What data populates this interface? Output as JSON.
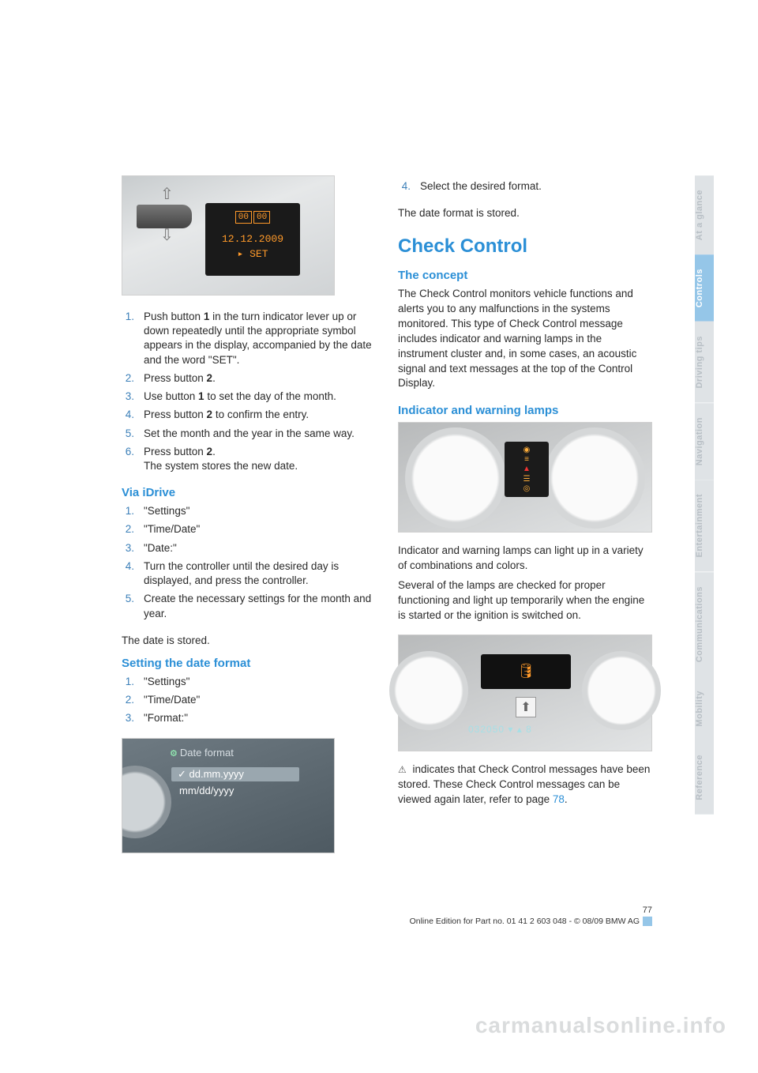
{
  "tabs": [
    {
      "label": "At a glance",
      "active": false
    },
    {
      "label": "Controls",
      "active": true
    },
    {
      "label": "Driving tips",
      "active": false
    },
    {
      "label": "Navigation",
      "active": false
    },
    {
      "label": "Entertainment",
      "active": false
    },
    {
      "label": "Communications",
      "active": false
    },
    {
      "label": "Mobility",
      "active": false
    },
    {
      "label": "Reference",
      "active": false
    }
  ],
  "tab_colors": {
    "active_bg": "#95c6e8",
    "active_fg": "#ffffff",
    "inactive_bg": "#dfe3e6",
    "inactive_fg": "#b8bfc5"
  },
  "fig1": {
    "display_top": "00 00",
    "date": "12.12.2009",
    "set": "▸  SET"
  },
  "steps_a": [
    {
      "n": "1.",
      "color": "#3b7fb8",
      "t": "Push button 1 in the turn indicator lever up or down repeatedly until the appropriate symbol appears in the display, accompanied by the date and the word \"SET\"."
    },
    {
      "n": "2.",
      "color": "#3b7fb8",
      "t": "Press button 2."
    },
    {
      "n": "3.",
      "color": "#3b7fb8",
      "t": "Use button 1 to set the day of the month."
    },
    {
      "n": "4.",
      "color": "#3b7fb8",
      "t": "Press button 2 to confirm the entry."
    },
    {
      "n": "5.",
      "color": "#3b7fb8",
      "t": "Set the month and the year in the same way."
    },
    {
      "n": "6.",
      "color": "#3b7fb8",
      "t": "Press button 2.\nThe system stores the new date."
    }
  ],
  "via_idrive_h": "Via iDrive",
  "steps_b": [
    {
      "n": "1.",
      "t": "\"Settings\""
    },
    {
      "n": "2.",
      "t": "\"Time/Date\""
    },
    {
      "n": "3.",
      "t": "\"Date:\""
    },
    {
      "n": "4.",
      "t": "Turn the controller until the desired day is displayed, and press the controller."
    },
    {
      "n": "5.",
      "t": "Create the necessary settings for the month and year."
    }
  ],
  "date_stored": "The date is stored.",
  "set_fmt_h": "Setting the date format",
  "steps_c": [
    {
      "n": "1.",
      "t": "\"Settings\""
    },
    {
      "n": "2.",
      "t": "\"Time/Date\""
    },
    {
      "n": "3.",
      "t": "\"Format:\""
    }
  ],
  "figfmt": {
    "title": "Date format",
    "row1": "dd.mm.yyyy",
    "row2": "mm/dd/yyyy"
  },
  "steps_d": [
    {
      "n": "4.",
      "t": "Select the desired format."
    }
  ],
  "fmt_stored": "The date format is stored.",
  "check_h": "Check Control",
  "concept_h": "The concept",
  "concept_p": "The Check Control monitors vehicle functions and alerts you to any malfunctions in the systems monitored. This type of Check Control message includes indicator and warning lamps in the instrument cluster and, in some cases, an acoustic signal and text messages at the top of the Control Display.",
  "iw_h": "Indicator and warning lamps",
  "iw_p1": "Indicator and warning lamps can light up in a variety of combinations and colors.",
  "iw_p2": "Several of the lamps are checked for proper functioning and light up temporarily when the engine is started or the ignition is switched on.",
  "cc_readout": "032050 ▾   ▴ 8",
  "cc_note_pre": " indicates that Check Control messages have been stored. These Check Control messages can be viewed again later, refer to page ",
  "cc_note_link": "78",
  "cc_note_post": ".",
  "footer": {
    "page": "77",
    "line": "Online Edition for Part no. 01 41 2 603 048 - © 08/09 BMW AG"
  },
  "watermark": "carmanualsonline.info",
  "heading_color": "#2b8fd6",
  "text_color": "#2a2a2a",
  "step_num_color": "#3b7fb8"
}
